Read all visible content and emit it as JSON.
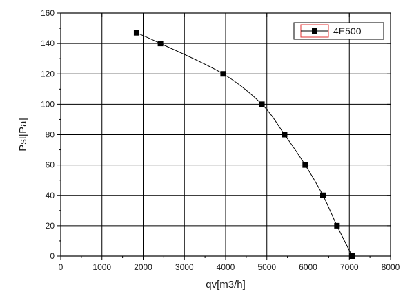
{
  "chart_data": {
    "type": "line",
    "xlabel": "qv[m3/h]",
    "ylabel": "Pst[Pa]",
    "xlim": [
      0,
      8000
    ],
    "ylim": [
      0,
      160
    ],
    "x_ticks": [
      0,
      1000,
      2000,
      3000,
      4000,
      5000,
      6000,
      7000,
      8000
    ],
    "y_ticks": [
      0,
      20,
      40,
      60,
      80,
      100,
      120,
      140,
      160
    ],
    "grid": true,
    "legend": "top-right",
    "series": [
      {
        "name": "4E500",
        "color": "#000000",
        "marker": "square",
        "x": [
          1840,
          2420,
          3940,
          4880,
          5430,
          5930,
          6360,
          6700,
          7070
        ],
        "y": [
          147,
          140,
          120,
          100,
          80,
          60,
          40,
          20,
          0
        ]
      }
    ]
  },
  "colors": {
    "legend_highlight": "#e03030",
    "grid": "#000000"
  }
}
